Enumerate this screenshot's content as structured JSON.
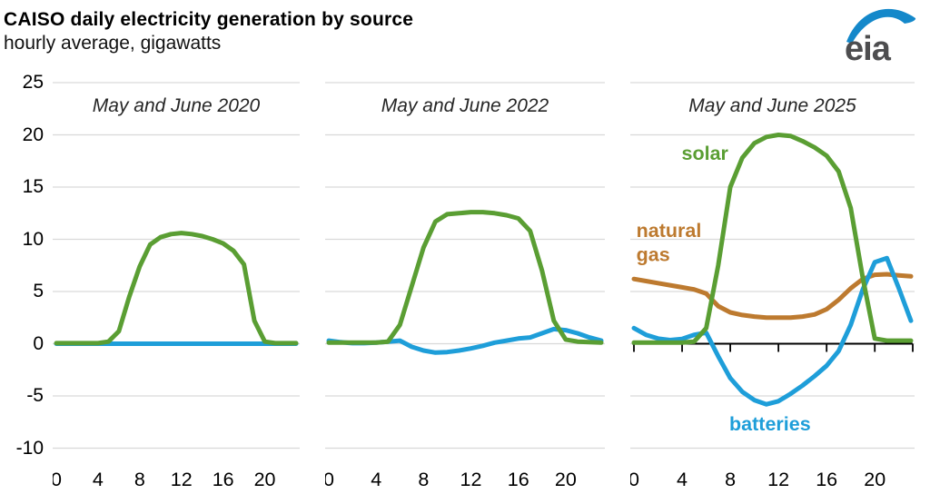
{
  "header": {
    "title": "CAISO daily electricity generation by source",
    "subtitle": "hourly average, gigawatts",
    "logo_text": "eia"
  },
  "colors": {
    "solar": "#5a9e33",
    "batteries": "#1e9ed9",
    "natural_gas": "#bd7a2f",
    "grid_line": "#d9d9d9",
    "axis": "#000000",
    "panel_title": "#262626",
    "tick_label": "#000000",
    "logo_text": "#4d4d4f",
    "logo_swoosh": "#1488ca"
  },
  "y_axis": {
    "ticks": [
      25,
      20,
      15,
      10,
      5,
      0,
      -5,
      -10
    ],
    "ylim": [
      -10,
      25
    ]
  },
  "x_axis": {
    "ticks": [
      0,
      4,
      8,
      12,
      16,
      20
    ],
    "hours_note": "hours 0-23, hourly values"
  },
  "chart_data": [
    {
      "type": "line",
      "title": "May and June 2020",
      "zero_axis": false,
      "series": [
        {
          "name": "batteries",
          "color": "#1e9ed9",
          "values": [
            0,
            0,
            0,
            0,
            0,
            0,
            0,
            0,
            0,
            0,
            0,
            0,
            0,
            0,
            0,
            0,
            0,
            0,
            0,
            0,
            0,
            0,
            0,
            0
          ]
        },
        {
          "name": "solar",
          "color": "#5a9e33",
          "values": [
            0.05,
            0.05,
            0.05,
            0.05,
            0.05,
            0.2,
            1.2,
            4.5,
            7.4,
            9.5,
            10.2,
            10.5,
            10.6,
            10.5,
            10.3,
            10.0,
            9.6,
            8.9,
            7.6,
            2.2,
            0.2,
            0.05,
            0.05,
            0.05
          ]
        }
      ],
      "labels": []
    },
    {
      "type": "line",
      "title": "May and June 2022",
      "zero_axis": false,
      "series": [
        {
          "name": "batteries",
          "color": "#1e9ed9",
          "values": [
            0.3,
            0.15,
            0.05,
            0.05,
            0.1,
            0.2,
            0.3,
            -0.3,
            -0.65,
            -0.85,
            -0.8,
            -0.65,
            -0.45,
            -0.2,
            0.1,
            0.3,
            0.5,
            0.6,
            1.0,
            1.4,
            1.3,
            1.0,
            0.6,
            0.3
          ]
        },
        {
          "name": "solar",
          "color": "#5a9e33",
          "values": [
            0.1,
            0.1,
            0.1,
            0.1,
            0.1,
            0.2,
            1.8,
            5.5,
            9.2,
            11.7,
            12.4,
            12.5,
            12.6,
            12.6,
            12.5,
            12.3,
            12.0,
            10.8,
            7.0,
            2.2,
            0.4,
            0.2,
            0.15,
            0.1
          ]
        }
      ],
      "labels": []
    },
    {
      "type": "line",
      "title": "May and June 2025",
      "zero_axis": true,
      "series": [
        {
          "name": "natural gas",
          "color": "#bd7a2f",
          "values": [
            6.2,
            6.0,
            5.8,
            5.6,
            5.4,
            5.2,
            4.8,
            3.6,
            3.0,
            2.75,
            2.6,
            2.5,
            2.5,
            2.5,
            2.6,
            2.8,
            3.3,
            4.2,
            5.3,
            6.2,
            6.6,
            6.65,
            6.55,
            6.45
          ]
        },
        {
          "name": "batteries",
          "color": "#1e9ed9",
          "values": [
            1.5,
            0.85,
            0.5,
            0.35,
            0.45,
            0.85,
            1.05,
            -1.2,
            -3.3,
            -4.6,
            -5.4,
            -5.8,
            -5.5,
            -4.8,
            -4.0,
            -3.1,
            -2.1,
            -0.7,
            1.8,
            5.2,
            7.8,
            8.2,
            5.3,
            2.2
          ]
        },
        {
          "name": "solar",
          "color": "#5a9e33",
          "values": [
            0.1,
            0.1,
            0.1,
            0.1,
            0.1,
            0.2,
            1.5,
            7.5,
            15.0,
            17.8,
            19.2,
            19.8,
            20.0,
            19.9,
            19.4,
            18.8,
            18.0,
            16.5,
            13.0,
            6.3,
            0.5,
            0.3,
            0.3,
            0.3
          ]
        }
      ],
      "labels": [
        {
          "text": "solar",
          "color": "#5a9e33",
          "x_hour": 5.9,
          "y_value": 17.6,
          "anchor": "middle"
        },
        {
          "text": "natural",
          "color": "#bd7a2f",
          "x_hour": 0.2,
          "y_value": 10.2,
          "anchor": "start"
        },
        {
          "text": "gas",
          "color": "#bd7a2f",
          "x_hour": 0.2,
          "y_value": 7.9,
          "anchor": "start"
        },
        {
          "text": "batteries",
          "color": "#1e9ed9",
          "x_hour": 11.3,
          "y_value": -8.3,
          "anchor": "middle"
        }
      ]
    }
  ]
}
